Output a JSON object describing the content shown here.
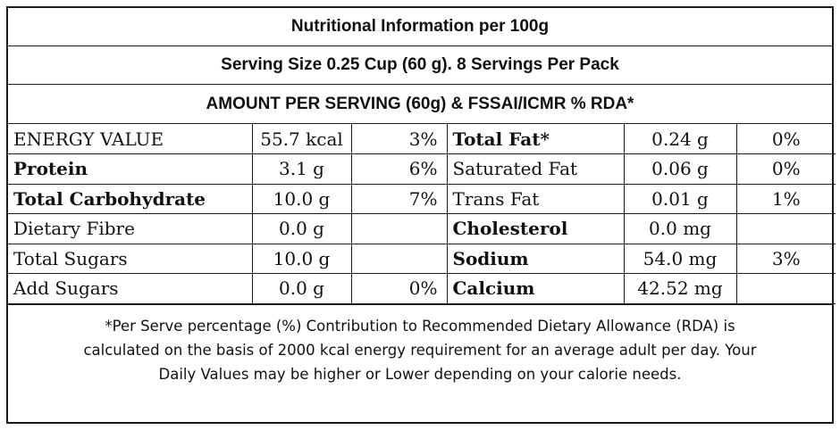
{
  "header": {
    "title": "Nutritional Information per 100g",
    "serving": "Serving Size 0.25 Cup (60 g).  8 Servings Per Pack",
    "amount": "AMOUNT PER SERVING (60g) & FSSAI/ICMR % RDA*"
  },
  "rows": [
    {
      "l_name": "ENERGY VALUE",
      "l_val": "55.7 kcal",
      "l_pct": "3%",
      "r_name": "Total Fat*",
      "r_val": "0.24 g",
      "r_pct": "0%"
    },
    {
      "l_name": "Protein",
      "l_val": "3.1 g",
      "l_pct": "6%",
      "r_name": "Saturated Fat",
      "r_val": "0.06 g",
      "r_pct": "0%"
    },
    {
      "l_name": "Total Carbohydrate",
      "l_val": "10.0 g",
      "l_pct": "7%",
      "r_name": "Trans Fat",
      "r_val": "0.01 g",
      "r_pct": "1%"
    },
    {
      "l_name": "Dietary Fibre",
      "l_val": "0.0 g",
      "l_pct": "",
      "r_name": "Cholesterol",
      "r_val": "0.0 mg",
      "r_pct": ""
    },
    {
      "l_name": "Total Sugars",
      "l_val": "10.0 g",
      "l_pct": "",
      "r_name": "Sodium",
      "r_val": "54.0 mg",
      "r_pct": "3%"
    },
    {
      "l_name": "Add Sugars",
      "l_val": "0.0 g",
      "l_pct": "0%",
      "r_name": "Calcium",
      "r_val": "42.52 mg",
      "r_pct": ""
    }
  ],
  "footer": {
    "line1": "*Per Serve percentage (%) Contribution to Recommended Dietary Allowance (RDA) is",
    "line2": "calculated on the basis of 2000 kcal energy requirement for an average adult per day. Your",
    "line3": "Daily Values may be higher or Lower depending on your calorie needs."
  }
}
